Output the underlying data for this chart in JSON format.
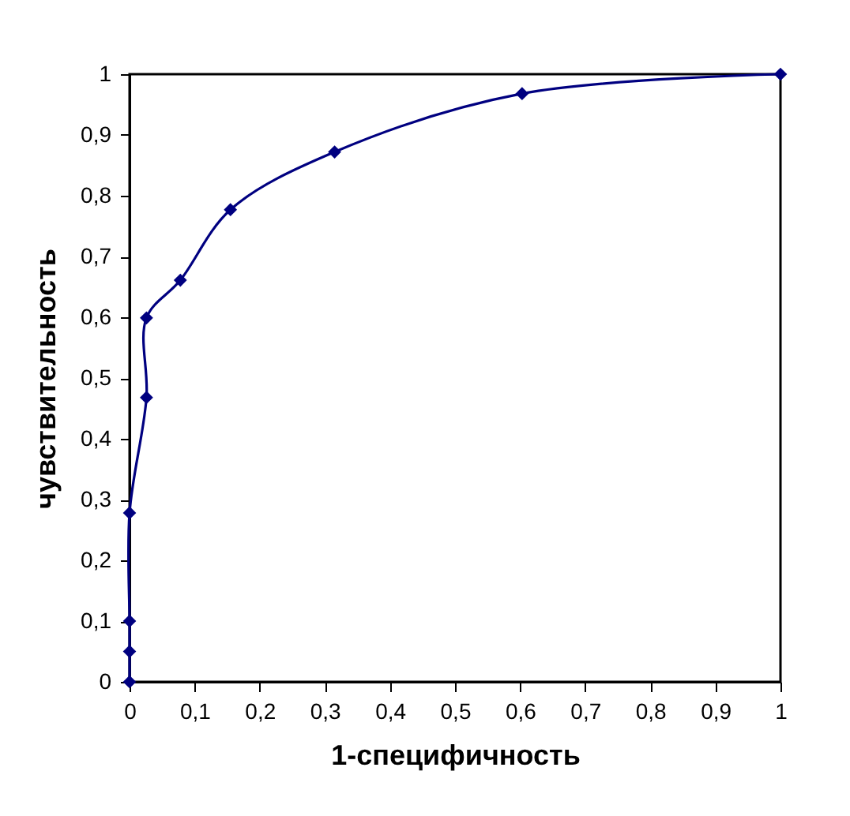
{
  "chart_data": {
    "type": "line",
    "xlabel": "1-специфичность",
    "ylabel": "чувствительность",
    "x": [
      0,
      0,
      0,
      0,
      0.026,
      0.026,
      0.078,
      0.155,
      0.315,
      0.603,
      1
    ],
    "series": [
      {
        "color": "#000080",
        "values": [
          0,
          0.05,
          0.1,
          0.278,
          0.468,
          0.599,
          0.661,
          0.777,
          0.872,
          0.968,
          1
        ]
      }
    ],
    "xlim": [
      0,
      1
    ],
    "ylim": [
      0,
      1
    ],
    "xticks": [
      0,
      {
        "value": 0.1,
        "label": "0,1"
      },
      {
        "value": 0.2,
        "label": "0,2"
      },
      {
        "value": 0.3,
        "label": "0,3"
      },
      {
        "value": 0.4,
        "label": "0,4"
      },
      {
        "value": 0.5,
        "label": "0,5"
      },
      {
        "value": 0.6,
        "label": "0,6"
      },
      {
        "value": 0.7,
        "label": "0,7"
      },
      {
        "value": 0.8,
        "label": "0,8"
      },
      {
        "value": 0.9,
        "label": "0,9"
      },
      1
    ],
    "yticks": [
      0,
      {
        "value": 0.1,
        "label": "0,1"
      },
      {
        "value": 0.2,
        "label": "0,2"
      },
      {
        "value": 0.3,
        "label": "0,3"
      },
      {
        "value": 0.4,
        "label": "0,4"
      },
      {
        "value": 0.5,
        "label": "0,5"
      },
      {
        "value": 0.6,
        "label": "0,6"
      },
      {
        "value": 0.7,
        "label": "0,7"
      },
      {
        "value": 0.8,
        "label": "0,8"
      },
      {
        "value": 0.9,
        "label": "0,9"
      },
      1
    ],
    "grid": false,
    "marker": "diamond",
    "line_style": "solid"
  }
}
